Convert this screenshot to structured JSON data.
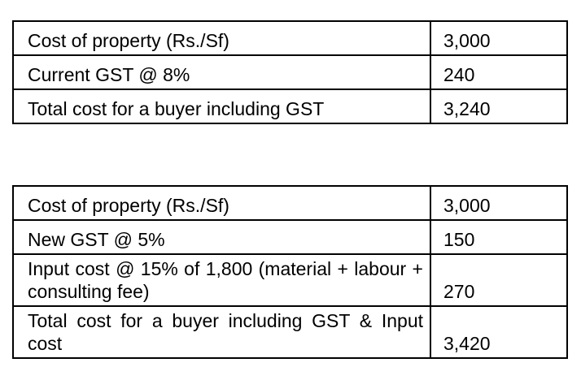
{
  "tables": [
    {
      "rows": [
        {
          "label": "Cost of property (Rs./Sf)",
          "value": "3,000"
        },
        {
          "label": "Current GST @ 8%",
          "value": "240"
        },
        {
          "label": "Total cost for a buyer including GST",
          "value": "3,240"
        }
      ]
    },
    {
      "rows": [
        {
          "label": "Cost of property (Rs./Sf)",
          "value": "3,000"
        },
        {
          "label": "New GST @ 5%",
          "value": "150"
        },
        {
          "label": "Input cost @ 15% of 1,800 (material + labour + consulting fee)",
          "value": "270"
        },
        {
          "label": "Total cost for a buyer including GST & Input cost",
          "value": "3,420"
        }
      ]
    }
  ]
}
